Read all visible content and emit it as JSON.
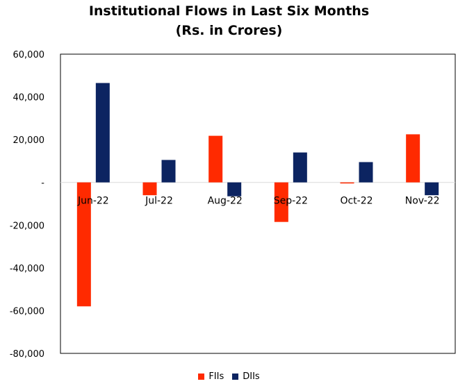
{
  "title": {
    "line1": "Institutional Flows in Last Six Months",
    "line2": "(Rs. in Crores)"
  },
  "chart_data": {
    "type": "bar",
    "title": "Institutional Flows in Last Six Months (Rs. in Crores)",
    "categories": [
      "Jun-22",
      "Jul-22",
      "Aug-22",
      "Sep-22",
      "Oct-22",
      "Nov-22"
    ],
    "series": [
      {
        "name": "FIIs",
        "color": "#ff2a00",
        "values": [
          -58000,
          -6000,
          21800,
          -18500,
          -500,
          22500
        ]
      },
      {
        "name": "DIIs",
        "color": "#0c2461",
        "values": [
          46500,
          10500,
          -6500,
          14000,
          9500,
          -6000
        ]
      }
    ],
    "ylim": [
      -80000,
      60000
    ],
    "yticks": [
      60000,
      40000,
      20000,
      0,
      -20000,
      -40000,
      -60000,
      -80000
    ],
    "ytick_labels": [
      "60,000",
      "40,000",
      "20,000",
      "-",
      "-20,000",
      "-40,000",
      "-60,000",
      "-80,000"
    ],
    "grid": false,
    "legend_position": "bottom"
  }
}
